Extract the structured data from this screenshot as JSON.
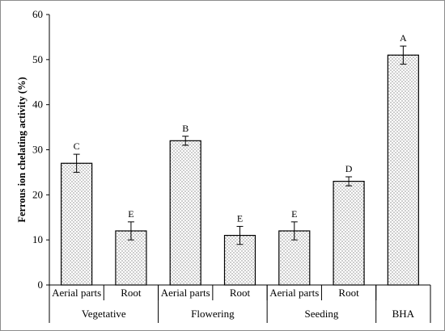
{
  "chart_data": {
    "type": "bar",
    "ylabel": "Ferrous ion chelating activity (%)",
    "ylim": [
      0,
      60
    ],
    "yticks": [
      0,
      10,
      20,
      30,
      40,
      50,
      60
    ],
    "grid": false,
    "pattern": "dotted-fill",
    "bars": [
      {
        "label": "Aerial parts",
        "group": "Vegetative",
        "value": 27,
        "error": 2,
        "sig": "C"
      },
      {
        "label": "Root",
        "group": "Vegetative",
        "value": 12,
        "error": 2,
        "sig": "E"
      },
      {
        "label": "Aerial parts",
        "group": "Flowering",
        "value": 32,
        "error": 1,
        "sig": "B"
      },
      {
        "label": "Root",
        "group": "Flowering",
        "value": 11,
        "error": 2,
        "sig": "E"
      },
      {
        "label": "Aerial parts",
        "group": "Seeding",
        "value": 12,
        "error": 2,
        "sig": "E"
      },
      {
        "label": "Root",
        "group": "Seeding",
        "value": 23,
        "error": 1,
        "sig": "D"
      },
      {
        "label": "",
        "group": "BHA",
        "value": 51,
        "error": 2,
        "sig": "A"
      }
    ],
    "groups": [
      "Vegetative",
      "Flowering",
      "Seeding",
      "BHA"
    ]
  }
}
